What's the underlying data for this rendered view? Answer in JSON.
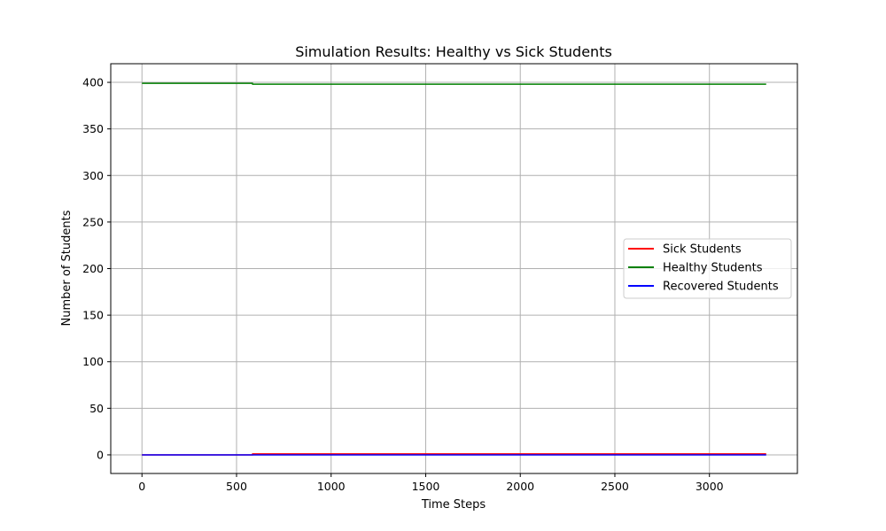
{
  "chart_data": {
    "type": "line",
    "title": "Simulation Results: Healthy vs Sick Students",
    "xlabel": "Time Steps",
    "ylabel": "Number of Students",
    "xlim": [
      -165,
      3465
    ],
    "ylim": [
      -20,
      420
    ],
    "xticks": [
      0,
      500,
      1000,
      1500,
      2000,
      2500,
      3000
    ],
    "yticks": [
      0,
      50,
      100,
      150,
      200,
      250,
      300,
      350,
      400
    ],
    "grid": true,
    "legend_position": "center-right",
    "series": [
      {
        "name": "Sick Students",
        "color": "#ff0000",
        "x": [
          0,
          584,
          585,
          3300
        ],
        "y": [
          0,
          0,
          1,
          1
        ]
      },
      {
        "name": "Healthy Students",
        "color": "#008000",
        "x": [
          0,
          584,
          585,
          3300
        ],
        "y": [
          399,
          399,
          398,
          398
        ]
      },
      {
        "name": "Recovered Students",
        "color": "#0000ff",
        "x": [
          0,
          3300
        ],
        "y": [
          0,
          0
        ]
      }
    ]
  }
}
